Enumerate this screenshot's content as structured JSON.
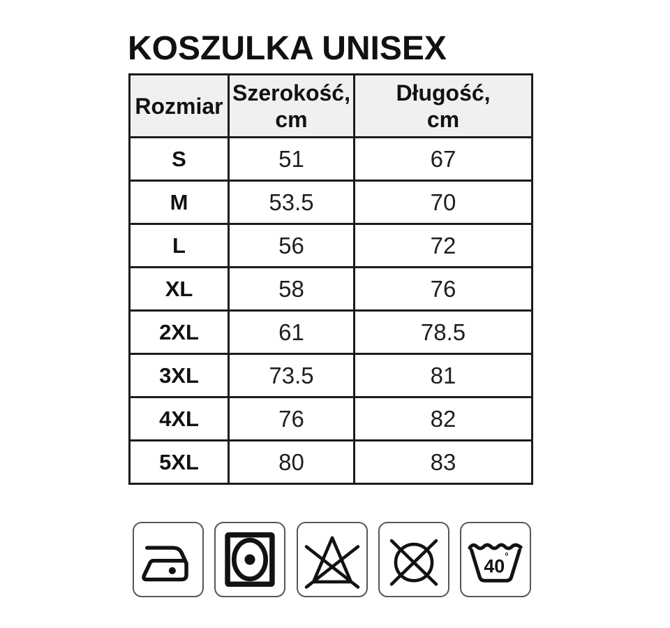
{
  "title": "KOSZULKA UNISEX",
  "chart_data": {
    "type": "table",
    "title": "KOSZULKA UNISEX",
    "columns": [
      {
        "label": "Rozmiar",
        "unit": ""
      },
      {
        "label": "Szerokość,",
        "unit": "cm"
      },
      {
        "label": "Długość,",
        "unit": "cm"
      }
    ],
    "rows": [
      [
        "S",
        "51",
        "67"
      ],
      [
        "M",
        "53.5",
        "70"
      ],
      [
        "L",
        "56",
        "72"
      ],
      [
        "XL",
        "58",
        "76"
      ],
      [
        "2XL",
        "61",
        "78.5"
      ],
      [
        "3XL",
        "73.5",
        "81"
      ],
      [
        "4XL",
        "76",
        "82"
      ],
      [
        "5XL",
        "80",
        "83"
      ]
    ]
  },
  "care_symbols": {
    "items": [
      {
        "name": "iron-low-temperature"
      },
      {
        "name": "tumble-dry"
      },
      {
        "name": "do-not-bleach"
      },
      {
        "name": "do-not-dry-clean"
      },
      {
        "name": "wash-40-degrees",
        "temp": "40",
        "degree": "°"
      }
    ]
  },
  "colors": {
    "background": "#ffffff",
    "header_bg": "#f0f0f0",
    "table_border": "#1c1c1c",
    "icon_box_border": "#575757",
    "text": "#111111"
  }
}
